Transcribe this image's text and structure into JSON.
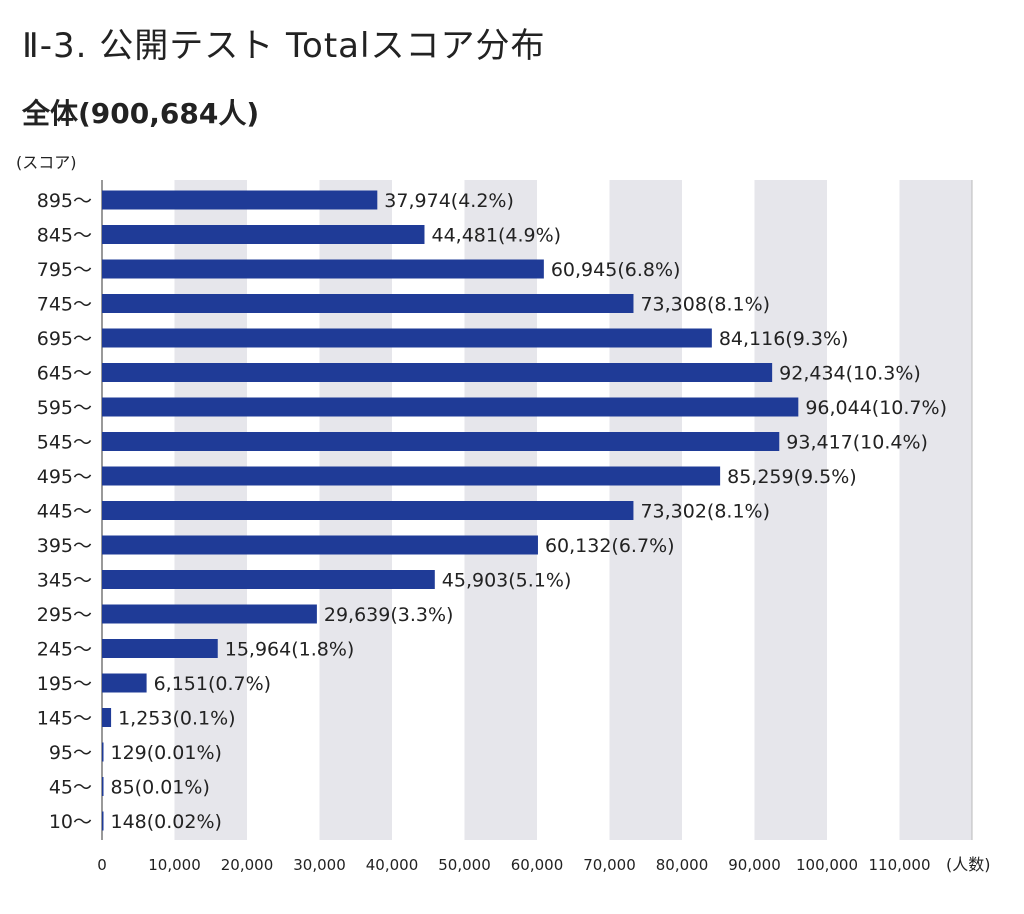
{
  "title": "Ⅱ-3. 公開テスト Totalスコア分布",
  "subtitle": "全体(900,684人)",
  "chart_data": {
    "type": "bar",
    "orientation": "horizontal",
    "ylabel": "(スコア)",
    "xlabel": "(人数)",
    "xlim": [
      0,
      120000
    ],
    "x_ticks": [
      0,
      10000,
      20000,
      30000,
      40000,
      50000,
      60000,
      70000,
      80000,
      90000,
      100000,
      110000
    ],
    "x_tick_labels": [
      "0",
      "10,000",
      "20,000",
      "30,000",
      "40,000",
      "50,000",
      "60,000",
      "70,000",
      "80,000",
      "90,000",
      "100,000",
      "110,000"
    ],
    "alternating_band_background": true,
    "bar_color": "#1f3b97",
    "band_color": "#e6e6eb",
    "categories": [
      "895〜",
      "845〜",
      "795〜",
      "745〜",
      "695〜",
      "645〜",
      "595〜",
      "545〜",
      "495〜",
      "445〜",
      "395〜",
      "345〜",
      "295〜",
      "245〜",
      "195〜",
      "145〜",
      "95〜",
      "45〜",
      "10〜"
    ],
    "values": [
      37974,
      44481,
      60945,
      73308,
      84116,
      92434,
      96044,
      93417,
      85259,
      73302,
      60132,
      45903,
      29639,
      15964,
      6151,
      1253,
      129,
      85,
      148
    ],
    "data_labels": [
      "37,974(4.2%)",
      "44,481(4.9%)",
      "60,945(6.8%)",
      "73,308(8.1%)",
      "84,116(9.3%)",
      "92,434(10.3%)",
      "96,044(10.7%)",
      "93,417(10.4%)",
      "85,259(9.5%)",
      "73,302(8.1%)",
      "60,132(6.7%)",
      "45,903(5.1%)",
      "29,639(3.3%)",
      "15,964(1.8%)",
      "6,151(0.7%)",
      "1,253(0.1%)",
      "129(0.01%)",
      "85(0.01%)",
      "148(0.02%)"
    ]
  }
}
